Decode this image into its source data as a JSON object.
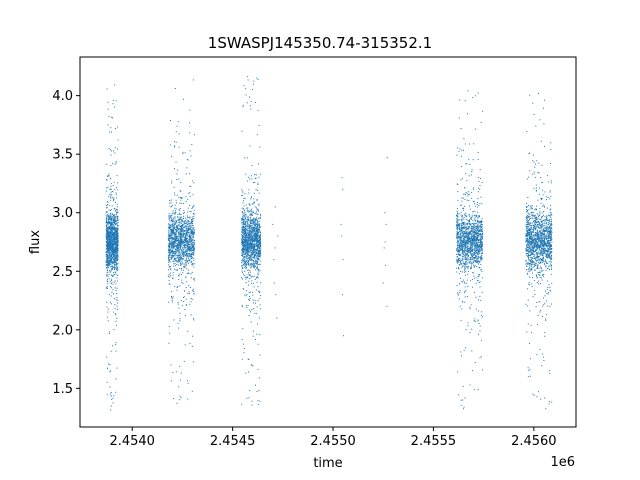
{
  "chart_data": {
    "type": "scatter",
    "title": "1SWASPJ145350.74-315352.1",
    "xlabel": "time",
    "ylabel": "flux",
    "x_offset_label": "1e6",
    "xlim": [
      2453740,
      2456210
    ],
    "ylim": [
      1.17,
      4.33
    ],
    "x_ticks": [
      2454000,
      2454500,
      2455000,
      2455500,
      2456000
    ],
    "x_tick_labels": [
      "2.4540",
      "2.4545",
      "2.4550",
      "2.4555",
      "2.4560"
    ],
    "y_ticks": [
      1.5,
      2.0,
      2.5,
      3.0,
      3.5,
      4.0
    ],
    "y_tick_labels": [
      "1.5",
      "2.0",
      "2.5",
      "3.0",
      "3.5",
      "4.0"
    ],
    "grid": false,
    "marker_color": "#1f77b4",
    "clusters": [
      {
        "x_range": [
          2453870,
          2453930
        ],
        "y_center": 2.75,
        "y_min": 1.3,
        "y_max": 4.18
      },
      {
        "x_range": [
          2454180,
          2454310
        ],
        "y_center": 2.76,
        "y_min": 1.32,
        "y_max": 4.15
      },
      {
        "x_range": [
          2454545,
          2454640
        ],
        "y_center": 2.76,
        "y_min": 1.35,
        "y_max": 4.18
      },
      {
        "x_range": [
          2455615,
          2455745
        ],
        "y_center": 2.76,
        "y_min": 1.32,
        "y_max": 4.05
      },
      {
        "x_range": [
          2455960,
          2456090
        ],
        "y_center": 2.76,
        "y_min": 1.3,
        "y_max": 4.02
      }
    ],
    "sparse_points": [
      [
        2454700,
        2.9
      ],
      [
        2454705,
        2.6
      ],
      [
        2454708,
        2.4
      ],
      [
        2454712,
        2.7
      ],
      [
        2454715,
        2.3
      ],
      [
        2454720,
        2.1
      ],
      [
        2454725,
        2.8
      ],
      [
        2454712,
        3.05
      ],
      [
        2455045,
        3.3
      ],
      [
        2455048,
        3.2
      ],
      [
        2455040,
        2.9
      ],
      [
        2455050,
        2.6
      ],
      [
        2455047,
        2.3
      ],
      [
        2455052,
        1.95
      ],
      [
        2455043,
        2.8
      ],
      [
        2455250,
        2.4
      ],
      [
        2455255,
        2.7
      ],
      [
        2455258,
        3.0
      ],
      [
        2455262,
        2.55
      ],
      [
        2455265,
        2.9
      ],
      [
        2455270,
        3.47
      ],
      [
        2455268,
        2.2
      ],
      [
        2455260,
        2.75
      ]
    ]
  }
}
